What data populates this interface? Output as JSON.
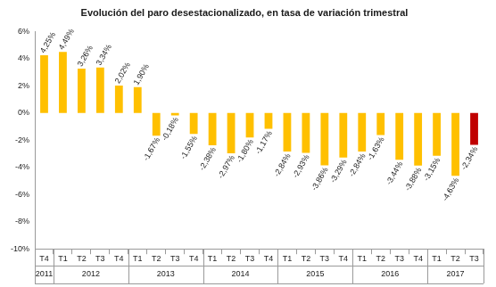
{
  "chart_data": {
    "type": "bar",
    "title": "Evolución del paro desestacionalizado, en tasa de variación trimestral",
    "categories": [
      "T4",
      "T1",
      "T2",
      "T3",
      "T4",
      "T1",
      "T2",
      "T3",
      "T4",
      "T1",
      "T2",
      "T3",
      "T4",
      "T1",
      "T2",
      "T3",
      "T4",
      "T1",
      "T2",
      "T3",
      "T4",
      "T1",
      "T2",
      "T3"
    ],
    "x_groups": [
      {
        "label": "2011",
        "count": 1
      },
      {
        "label": "2012",
        "count": 4
      },
      {
        "label": "2013",
        "count": 4
      },
      {
        "label": "2014",
        "count": 4
      },
      {
        "label": "2015",
        "count": 4
      },
      {
        "label": "2016",
        "count": 4
      },
      {
        "label": "2017",
        "count": 3
      }
    ],
    "values": [
      4.25,
      4.49,
      3.26,
      3.34,
      2.02,
      1.9,
      -1.67,
      -0.18,
      -1.55,
      -2.38,
      -2.97,
      -1.8,
      -1.17,
      -2.84,
      -2.93,
      -3.86,
      -3.29,
      -2.84,
      -1.63,
      -3.44,
      -3.88,
      -3.15,
      -4.63,
      -2.34
    ],
    "value_labels": [
      "4,25%",
      "4,49%",
      "3,26%",
      "3,34%",
      "2,02%",
      "1,90%",
      "-1,67%",
      "-0,18%",
      "-1,55%",
      "-2,38%",
      "-2,97%",
      "-1,80%",
      "-1,17%",
      "-2,84%",
      "-2,93%",
      "-3,86%",
      "-3,29%",
      "-2,84%",
      "-1,63%",
      "-3,44%",
      "-3,88%",
      "-3,15%",
      "-4,63%",
      "-2,34%"
    ],
    "colors": [
      "#FFC000",
      "#FFC000",
      "#FFC000",
      "#FFC000",
      "#FFC000",
      "#FFC000",
      "#FFC000",
      "#FFC000",
      "#FFC000",
      "#FFC000",
      "#FFC000",
      "#FFC000",
      "#FFC000",
      "#FFC000",
      "#FFC000",
      "#FFC000",
      "#FFC000",
      "#FFC000",
      "#FFC000",
      "#FFC000",
      "#FFC000",
      "#FFC000",
      "#FFC000",
      "#C00000"
    ],
    "ylim": [
      -10,
      6
    ],
    "yticks": [
      {
        "value": -10,
        "label": "-10%"
      },
      {
        "value": -8,
        "label": "-8%"
      },
      {
        "value": -6,
        "label": "-6%"
      },
      {
        "value": -4,
        "label": "-4%"
      },
      {
        "value": -2,
        "label": "-2%"
      },
      {
        "value": 0,
        "label": "0%"
      },
      {
        "value": 2,
        "label": "2%"
      },
      {
        "value": 4,
        "label": "4%"
      },
      {
        "value": 6,
        "label": "6%"
      }
    ],
    "grid": false,
    "data_labels": true
  }
}
